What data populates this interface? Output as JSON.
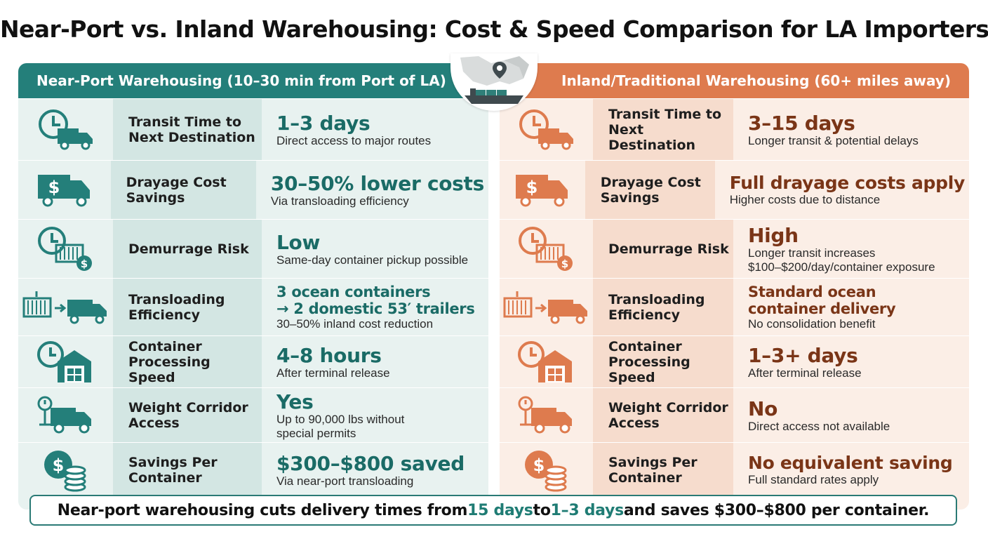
{
  "title": "Near-Port vs. Inland Warehousing: Cost & Speed Comparison for LA Importers",
  "colors": {
    "teal": "#247f7a",
    "orange": "#de7b4e",
    "teal_text": "#1a6b66",
    "brown_text": "#7a3517"
  },
  "left": {
    "header": "Near-Port Warehousing (10–30 min from Port of LA)",
    "rows": [
      {
        "icon": "clock-truck-icon",
        "label": "Transit Time to Next Destination",
        "value": "1–3 days",
        "sub": "Direct access to major routes"
      },
      {
        "icon": "dollar-truck-icon",
        "label": "Drayage Cost Savings",
        "value": "30–50% lower costs",
        "sub": "Via transloading efficiency"
      },
      {
        "icon": "clock-container-dollar-icon",
        "label": "Demurrage Risk",
        "value": "Low",
        "sub": "Same-day container pickup possible"
      },
      {
        "icon": "container-to-truck-icon",
        "label": "Transloading Efficiency",
        "value": "3 ocean containers",
        "value2": "→ 2 domestic 53′ trailers",
        "sub": "30–50% inland cost reduction"
      },
      {
        "icon": "clock-warehouse-icon",
        "label": "Container Processing Speed",
        "value": "4–8 hours",
        "sub": "After terminal release"
      },
      {
        "icon": "scale-truck-icon",
        "label": "Weight Corridor Access",
        "value": "Yes",
        "sub": "Up to 90,000 lbs without",
        "sub2": "special permits"
      },
      {
        "icon": "dollar-coins-icon",
        "label": "Savings Per Container",
        "value": "$300–$800 saved",
        "sub": "Via near-port transloading"
      }
    ]
  },
  "right": {
    "header": "Inland/Traditional Warehousing (60+ miles away)",
    "rows": [
      {
        "icon": "clock-truck-icon",
        "label": "Transit Time to Next Destination",
        "value": "3–15 days",
        "sub": "Longer transit & potential delays"
      },
      {
        "icon": "dollar-truck-icon",
        "label": "Drayage Cost Savings",
        "value": "Full drayage costs apply",
        "sub": "Higher costs due to distance"
      },
      {
        "icon": "clock-container-dollar-icon",
        "label": "Demurrage Risk",
        "value": "High",
        "sub": "Longer transit increases",
        "sub2": "$100–$200/day/container exposure"
      },
      {
        "icon": "container-to-truck-icon",
        "label": "Transloading Efficiency",
        "value": "Standard ocean",
        "value2": "container delivery",
        "sub": "No consolidation benefit"
      },
      {
        "icon": "clock-warehouse-icon",
        "label": "Container Processing Speed",
        "value": "1–3+ days",
        "sub": "After terminal release"
      },
      {
        "icon": "scale-truck-icon",
        "label": "Weight Corridor Access",
        "value": "No",
        "sub": "Direct access not available"
      },
      {
        "icon": "dollar-coins-icon",
        "label": "Savings Per Container",
        "value": "No equivalent saving",
        "sub": "Full standard rates apply"
      }
    ]
  },
  "footer": {
    "part1": "Near-port warehousing cuts delivery times from ",
    "hl1": "15 days",
    "part2": " to ",
    "hl2": "1–3 days",
    "part3": " and saves $300–$800 per container."
  }
}
